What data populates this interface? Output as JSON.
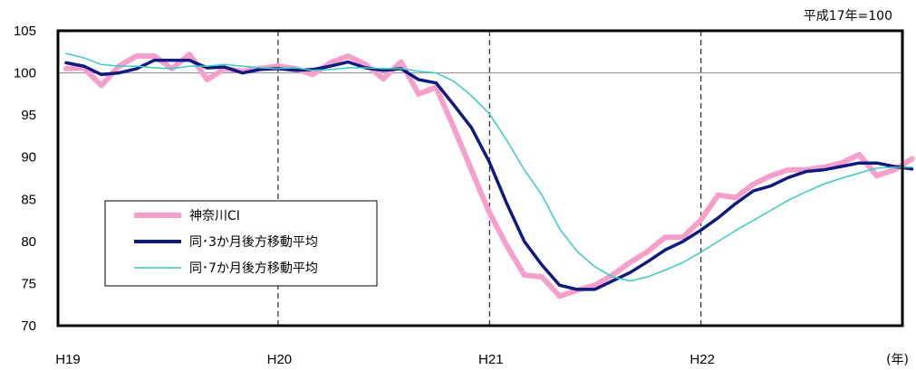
{
  "chart_data": {
    "type": "line",
    "note": "平成17年=100",
    "xunit": "(年)",
    "x_tick_labels": [
      "H19",
      "H20",
      "H21",
      "H22"
    ],
    "ylim": [
      70,
      105
    ],
    "y_ticks": [
      70,
      75,
      80,
      85,
      90,
      95,
      100,
      105
    ],
    "reference_line": 100,
    "x_start": "H19-01",
    "grid": "vertical dashed lines at year boundaries",
    "legend_position": "lower-left inside plot",
    "series": [
      {
        "name": "神奈川CI",
        "color": "#f79fcb",
        "values": [
          100.5,
          100.6,
          98.5,
          100.8,
          102.0,
          102.0,
          100.5,
          102.2,
          99.2,
          100.5,
          100.2,
          100.5,
          100.8,
          100.5,
          99.8,
          101.2,
          102.0,
          101.0,
          99.3,
          101.3,
          97.5,
          98.3,
          93.5,
          88.5,
          83.5,
          79.5,
          76.0,
          75.8,
          73.5,
          74.2,
          74.8,
          76.0,
          77.5,
          78.8,
          80.5,
          80.5,
          82.5,
          85.5,
          85.2,
          86.8,
          87.8,
          88.5,
          88.5,
          88.8,
          89.3,
          90.3,
          87.8,
          88.5,
          89.8
        ]
      },
      {
        "name": "同･3か月後方移動平均",
        "color": "#0f1a80",
        "values": [
          101.2,
          100.8,
          99.8,
          100.0,
          100.5,
          101.5,
          101.5,
          101.5,
          100.6,
          100.7,
          100.0,
          100.4,
          100.5,
          100.3,
          100.4,
          100.8,
          101.3,
          100.6,
          100.3,
          100.5,
          99.2,
          98.8,
          96.2,
          93.5,
          89.5,
          84.5,
          80.0,
          77.2,
          74.8,
          74.3,
          74.3,
          75.3,
          76.3,
          77.6,
          79.0,
          80.0,
          81.3,
          82.8,
          84.5,
          86.0,
          86.6,
          87.6,
          88.3,
          88.5,
          88.9,
          89.3,
          89.3,
          88.9,
          88.6
        ]
      },
      {
        "name": "同･7か月後方移動平均",
        "color": "#3cc9c4",
        "values": [
          102.3,
          101.8,
          101.0,
          100.8,
          100.8,
          100.6,
          100.5,
          100.8,
          100.8,
          101.0,
          100.8,
          100.6,
          100.5,
          100.6,
          100.3,
          100.4,
          100.6,
          100.6,
          100.5,
          100.5,
          100.2,
          100.0,
          99.0,
          97.3,
          95.2,
          92.0,
          88.5,
          85.5,
          81.5,
          78.8,
          77.0,
          75.8,
          75.3,
          75.8,
          76.6,
          77.5,
          78.7,
          80.0,
          81.3,
          82.5,
          83.7,
          84.9,
          85.9,
          86.8,
          87.5,
          88.1,
          88.7,
          88.8,
          88.8
        ]
      }
    ]
  }
}
